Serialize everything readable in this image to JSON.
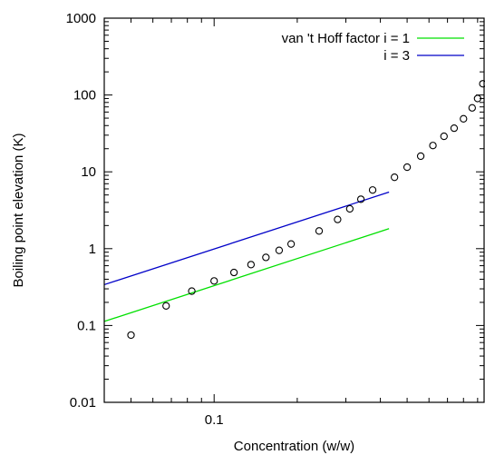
{
  "chart_data": {
    "type": "scatter",
    "xlabel": "Concentration (w/w)",
    "ylabel": "Boiling point elevation (K)",
    "xscale": "log",
    "yscale": "log",
    "xlim": [
      0.04,
      0.95
    ],
    "ylim": [
      0.01,
      1000
    ],
    "grid": false,
    "legend_position": "top-right",
    "x_tick_labels": [
      {
        "value": 0.1,
        "label": "0.1"
      }
    ],
    "y_tick_labels": [
      {
        "value": 0.01,
        "label": "0.01"
      },
      {
        "value": 0.1,
        "label": "0.1"
      },
      {
        "value": 1,
        "label": "1"
      },
      {
        "value": 10,
        "label": "10"
      },
      {
        "value": 100,
        "label": "100"
      },
      {
        "value": 1000,
        "label": "1000"
      }
    ],
    "series": [
      {
        "name": "van 't Hoff factor i = 1",
        "kind": "line",
        "color": "#00e000",
        "points": [
          [
            0.04,
            0.113
          ],
          [
            0.43,
            1.82
          ]
        ]
      },
      {
        "name": "i = 3",
        "kind": "line",
        "color": "#0000c8",
        "points": [
          [
            0.04,
            0.34
          ],
          [
            0.43,
            5.45
          ]
        ]
      },
      {
        "kind": "points",
        "color": "#000000",
        "marker": "open-circle",
        "points": [
          [
            0.05,
            0.075
          ],
          [
            0.067,
            0.18
          ],
          [
            0.083,
            0.28
          ],
          [
            0.1,
            0.38
          ],
          [
            0.118,
            0.49
          ],
          [
            0.136,
            0.62
          ],
          [
            0.154,
            0.77
          ],
          [
            0.172,
            0.95
          ],
          [
            0.19,
            1.15
          ],
          [
            0.24,
            1.7
          ],
          [
            0.28,
            2.4
          ],
          [
            0.31,
            3.3
          ],
          [
            0.34,
            4.4
          ],
          [
            0.375,
            5.8
          ],
          [
            0.45,
            8.5
          ],
          [
            0.5,
            11.5
          ],
          [
            0.56,
            16
          ],
          [
            0.62,
            22
          ],
          [
            0.68,
            29
          ],
          [
            0.74,
            37
          ],
          [
            0.8,
            49
          ],
          [
            0.86,
            68
          ],
          [
            0.9,
            90
          ],
          [
            0.94,
            140
          ]
        ]
      }
    ]
  }
}
